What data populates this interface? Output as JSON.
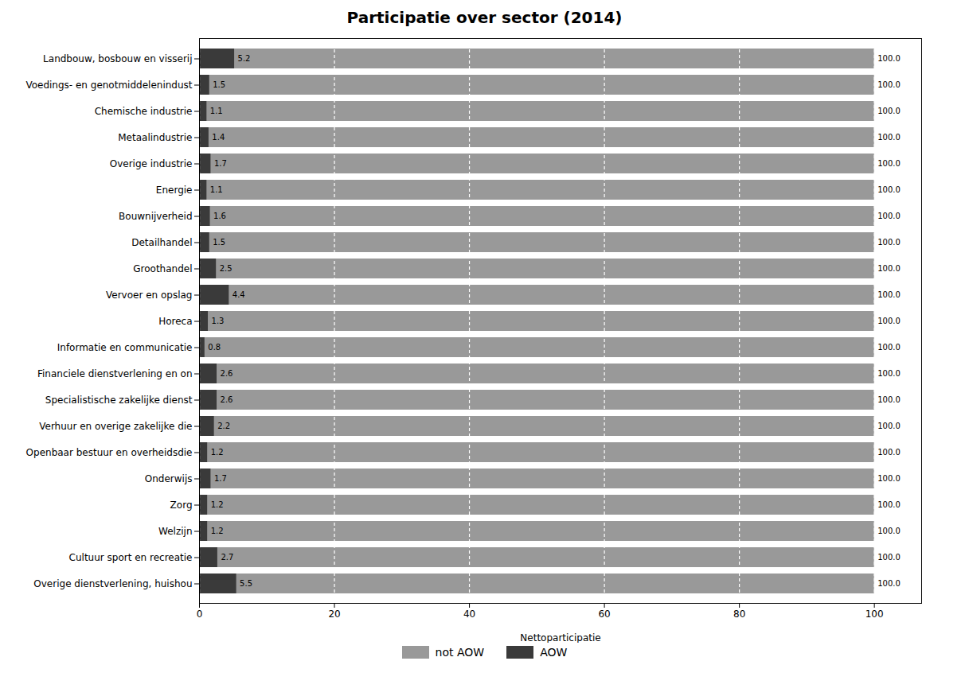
{
  "chart_data": {
    "type": "bar",
    "orientation": "horizontal",
    "title": "Participatie over sector (2014)",
    "xlabel": "Nettoparticipatie",
    "categories": [
      "Landbouw, bosbouw en visserij",
      "Voedings- en genotmiddelenindust",
      "Chemische industrie",
      "Metaalindustrie",
      "Overige industrie",
      "Energie",
      "Bouwnijverheid",
      "Detailhandel",
      "Groothandel",
      "Vervoer en opslag",
      "Horeca",
      "Informatie en communicatie",
      "Financiele dienstverlening en on",
      "Specialistische zakelijke dienst",
      "Verhuur en overige zakelijke die",
      "Openbaar bestuur en overheidsdie",
      "Onderwijs",
      "Zorg",
      "Welzijn",
      "Cultuur sport en recreatie",
      "Overige dienstverlening, huishou"
    ],
    "series": [
      {
        "name": "not AOW",
        "color": "#999999",
        "values": [
          100.0,
          100.0,
          100.0,
          100.0,
          100.0,
          100.0,
          100.0,
          100.0,
          100.0,
          100.0,
          100.0,
          100.0,
          100.0,
          100.0,
          100.0,
          100.0,
          100.0,
          100.0,
          100.0,
          100.0,
          100.0
        ],
        "value_labels": [
          "100.0",
          "100.0",
          "100.0",
          "100.0",
          "100.0",
          "100.0",
          "100.0",
          "100.0",
          "100.0",
          "100.0",
          "100.0",
          "100.0",
          "100.0",
          "100.0",
          "100.0",
          "100.0",
          "100.0",
          "100.0",
          "100.0",
          "100.0",
          "100.0"
        ]
      },
      {
        "name": "AOW",
        "color": "#3a3a3a",
        "values": [
          5.2,
          1.5,
          1.1,
          1.4,
          1.7,
          1.1,
          1.6,
          1.5,
          2.5,
          4.4,
          1.3,
          0.8,
          2.6,
          2.6,
          2.2,
          1.2,
          1.7,
          1.2,
          1.2,
          2.7,
          5.5
        ]
      }
    ],
    "xlim": [
      0,
      107
    ],
    "xticks": [
      0,
      20,
      40,
      60,
      80,
      100
    ],
    "grid": true,
    "data_labels": true,
    "legend": "bottom"
  }
}
